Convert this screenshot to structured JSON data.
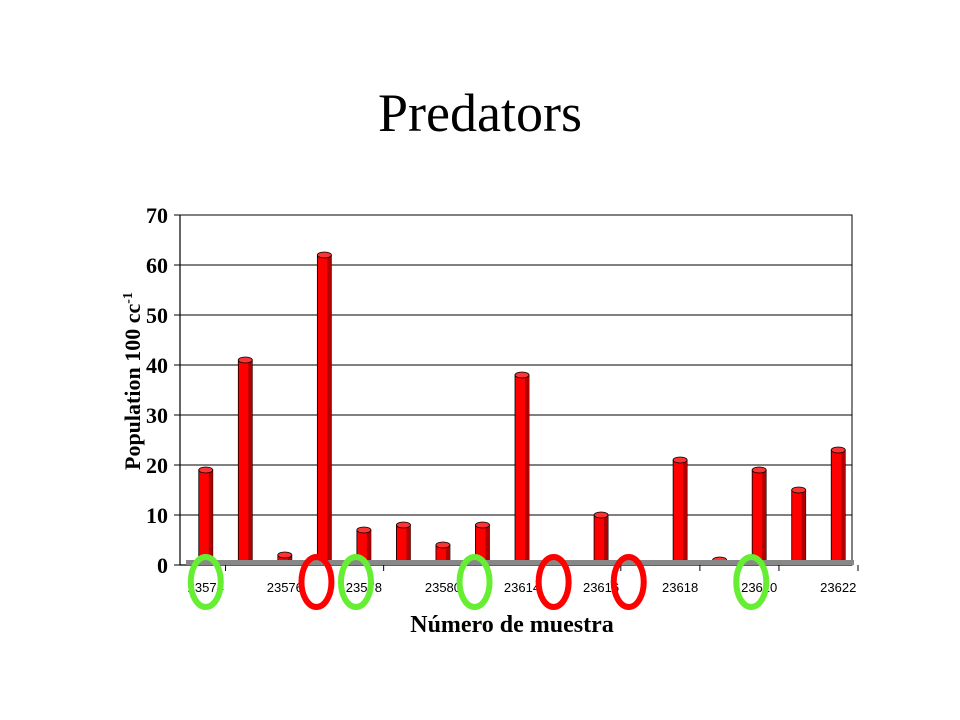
{
  "slide": {
    "title": "Predators"
  },
  "chart_data": {
    "type": "bar",
    "title": "",
    "xlabel": "Número de muestra",
    "ylabel": "Population 100 cc",
    "ylabel_superscript": "-1",
    "ylim": [
      0,
      70
    ],
    "yticks": [
      0,
      10,
      20,
      30,
      40,
      50,
      60,
      70
    ],
    "grid": true,
    "bar_color": "#ff0000",
    "x_tick_labels": [
      "23574",
      "23576",
      "23578",
      "23580",
      "23614",
      "23616",
      "23618",
      "23620",
      "23622"
    ],
    "values": [
      19,
      41,
      2,
      62,
      7,
      8,
      4,
      8,
      38,
      0,
      10,
      0,
      21,
      1,
      19,
      15,
      23
    ],
    "markers": [
      {
        "color": "#66ee33",
        "slot": 0.5
      },
      {
        "color": "#ff0000",
        "slot": 3.3
      },
      {
        "color": "#66ee33",
        "slot": 4.3
      },
      {
        "color": "#66ee33",
        "slot": 7.3
      },
      {
        "color": "#ff0000",
        "slot": 9.3
      },
      {
        "color": "#ff0000",
        "slot": 11.2
      },
      {
        "color": "#66ee33",
        "slot": 14.3
      }
    ]
  }
}
